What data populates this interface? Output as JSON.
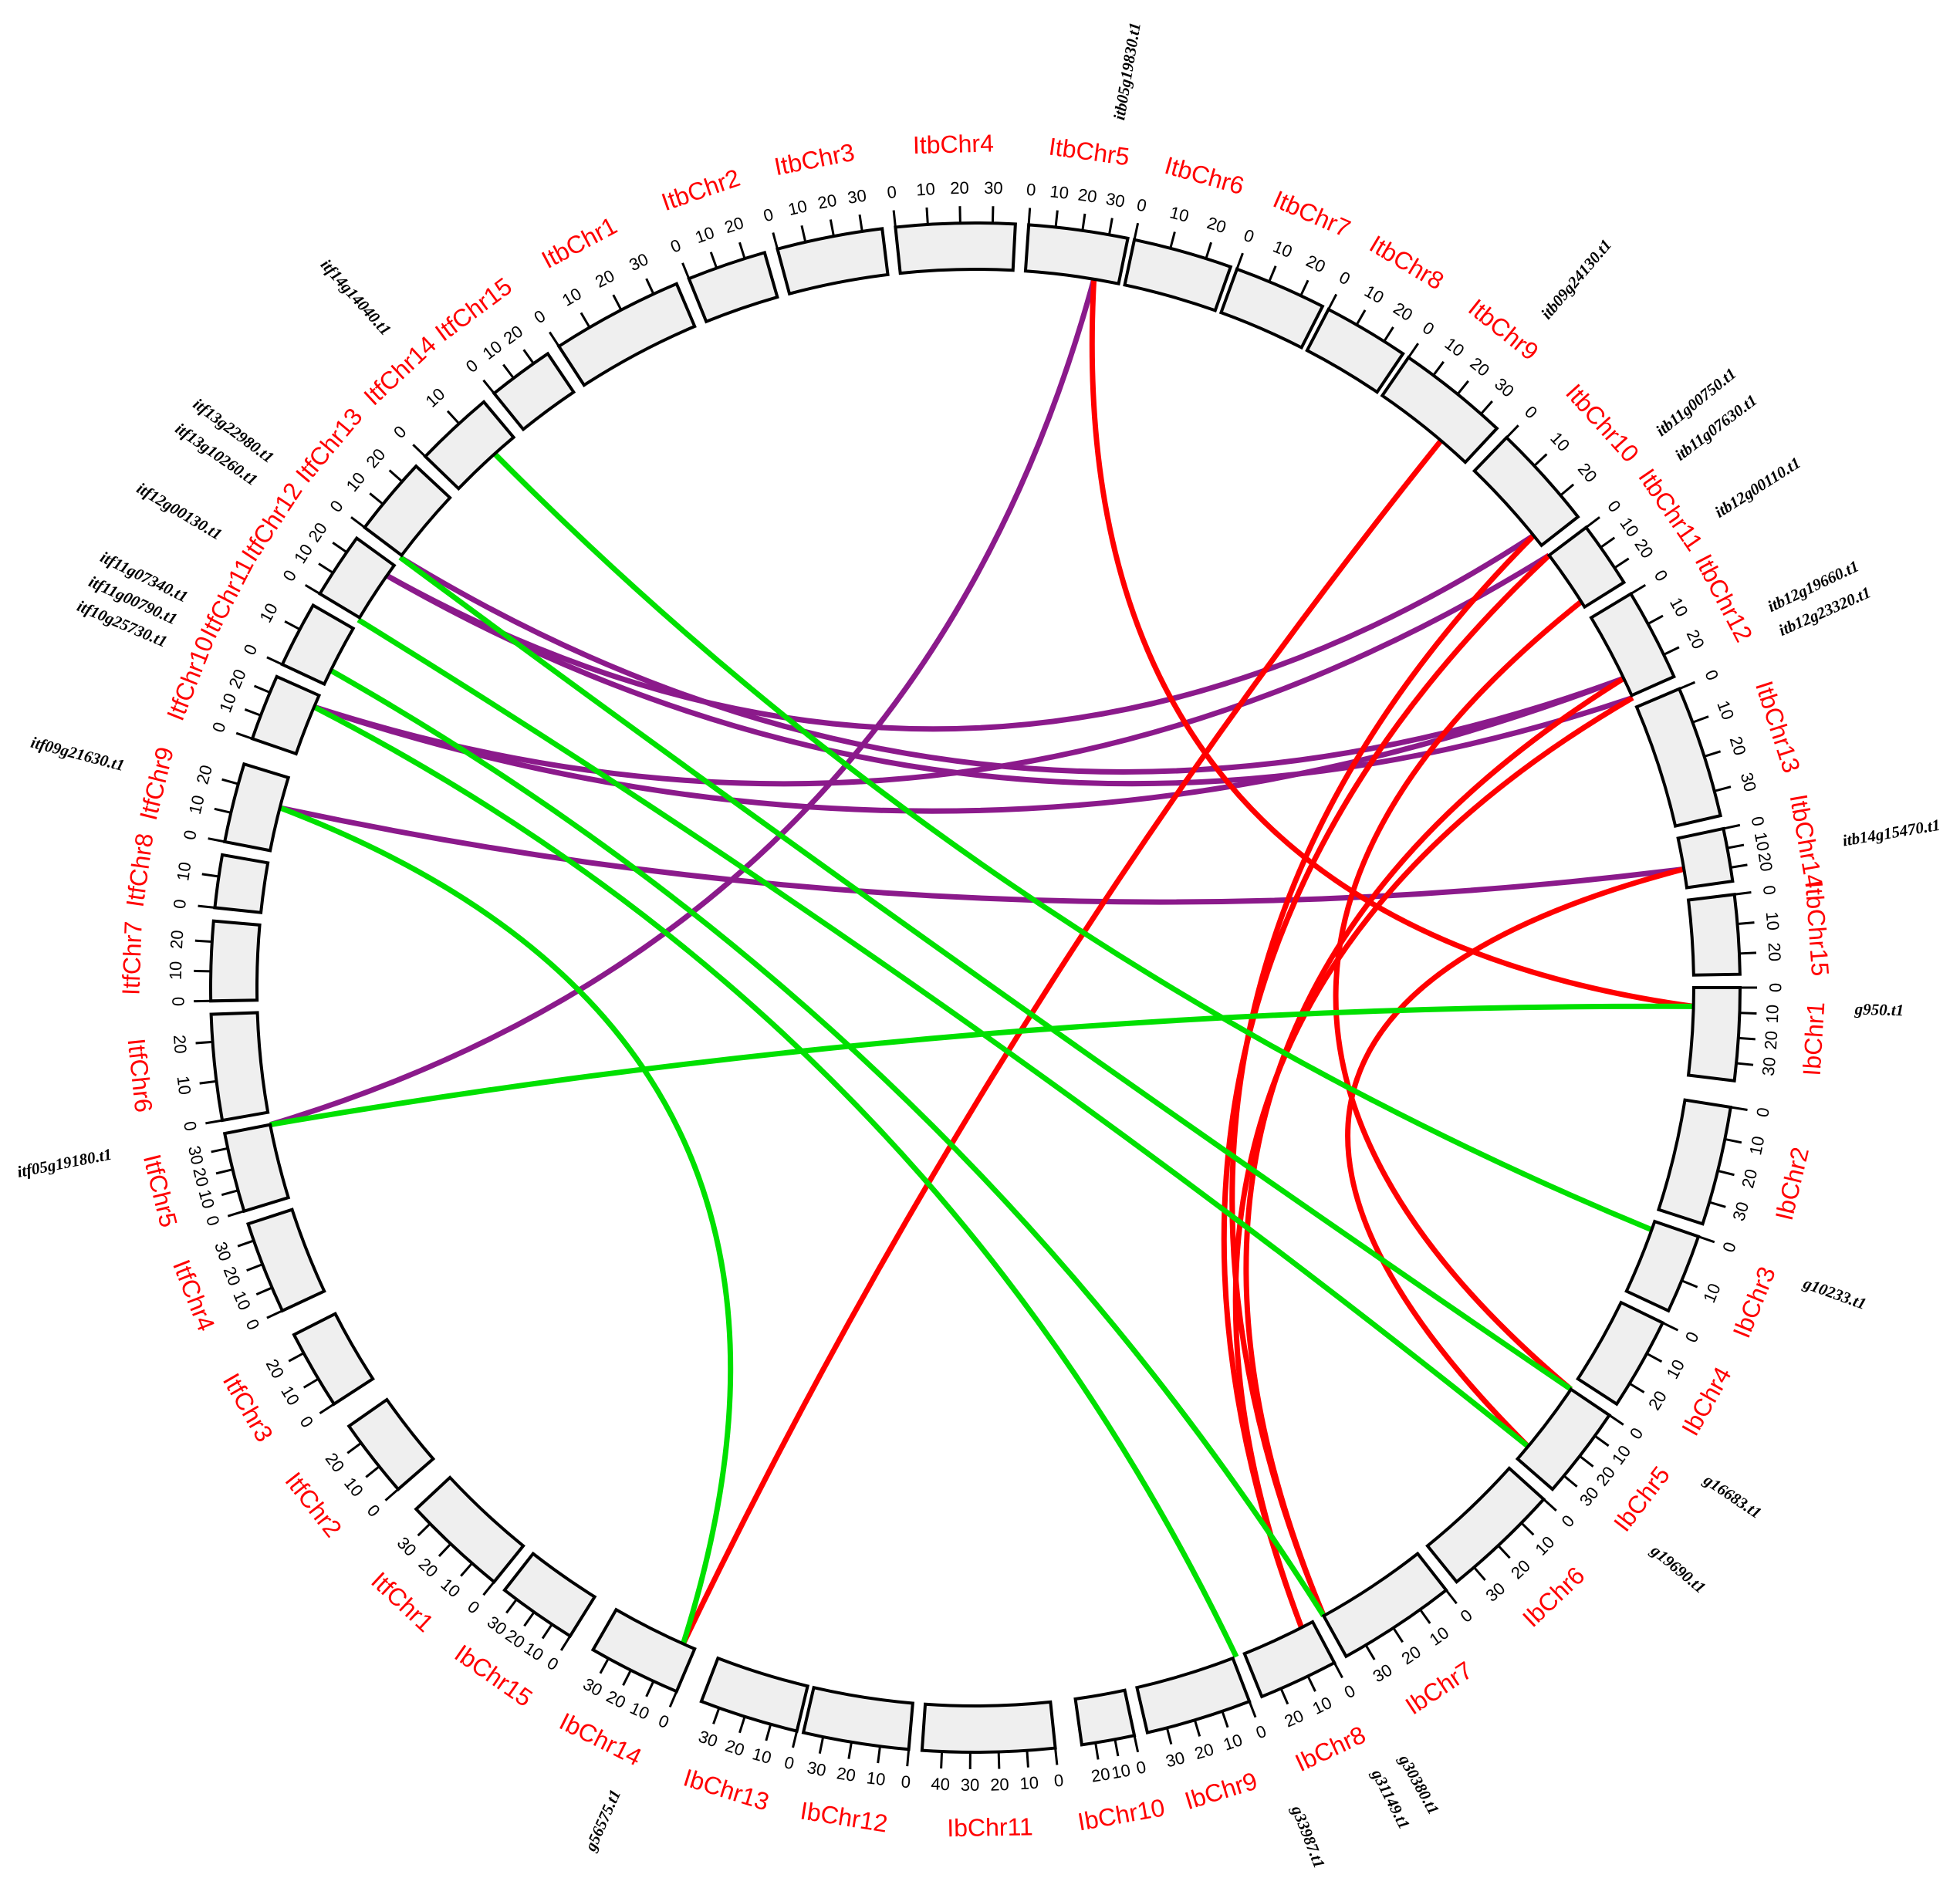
{
  "label_color": "#ff0000",
  "block_fill": "#efefef",
  "chromosomes": [
    {
      "label": "ItbChr1",
      "ticks": [
        0,
        10,
        20,
        30
      ]
    },
    {
      "label": "ItbChr2",
      "ticks": [
        0,
        10,
        20
      ]
    },
    {
      "label": "ItbChr3",
      "ticks": [
        0,
        10,
        20,
        30
      ]
    },
    {
      "label": "ItbChr4",
      "ticks": [
        0,
        10,
        20,
        30
      ]
    },
    {
      "label": "ItbChr5",
      "ticks": [
        0,
        10,
        20,
        30
      ]
    },
    {
      "label": "ItbChr6",
      "ticks": [
        0,
        10,
        20
      ]
    },
    {
      "label": "ItbChr7",
      "ticks": [
        0,
        10,
        20
      ]
    },
    {
      "label": "ItbChr8",
      "ticks": [
        0,
        10,
        20
      ]
    },
    {
      "label": "ItbChr9",
      "ticks": [
        0,
        10,
        20,
        30
      ]
    },
    {
      "label": "ItbChr10",
      "ticks": [
        0,
        10,
        20
      ]
    },
    {
      "label": "ItbChr11",
      "ticks": [
        0,
        10,
        20
      ]
    },
    {
      "label": "ItbChr12",
      "ticks": [
        0,
        10,
        20
      ]
    },
    {
      "label": "ItbChr13",
      "ticks": [
        0,
        10,
        20,
        30
      ]
    },
    {
      "label": "ItbChr14",
      "ticks": [
        0,
        10,
        20
      ]
    },
    {
      "label": "ItbChr15",
      "ticks": [
        0,
        10,
        20
      ]
    },
    {
      "label": "IbChr1",
      "ticks": [
        0,
        10,
        20,
        30
      ]
    },
    {
      "label": "IbChr2",
      "ticks": [
        0,
        10,
        20,
        30
      ]
    },
    {
      "label": "IbChr3",
      "ticks": [
        0,
        10
      ]
    },
    {
      "label": "IbChr4",
      "ticks": [
        0,
        10,
        20
      ]
    },
    {
      "label": "IbChr5",
      "ticks": [
        0,
        10,
        20,
        30
      ]
    },
    {
      "label": "IbChr6",
      "ticks": [
        0,
        10,
        20,
        30
      ]
    },
    {
      "label": "IbChr7",
      "ticks": [
        0,
        10,
        20,
        30
      ]
    },
    {
      "label": "IbChr8",
      "ticks": [
        0,
        10,
        20
      ]
    },
    {
      "label": "IbChr9",
      "ticks": [
        0,
        10,
        20,
        30
      ]
    },
    {
      "label": "IbChr10",
      "ticks": [
        0,
        10,
        20
      ]
    },
    {
      "label": "IbChr11",
      "ticks": [
        0,
        10,
        20,
        30,
        40
      ]
    },
    {
      "label": "IbChr12",
      "ticks": [
        0,
        10,
        20,
        30
      ]
    },
    {
      "label": "IbChr13",
      "ticks": [
        0,
        10,
        20,
        30
      ]
    },
    {
      "label": "IbChr14",
      "ticks": [
        0,
        10,
        20,
        30
      ]
    },
    {
      "label": "IbChr15",
      "ticks": [
        0,
        10,
        20,
        30
      ]
    },
    {
      "label": "ItfChr1",
      "ticks": [
        0,
        10,
        20,
        30
      ]
    },
    {
      "label": "ItfChr2",
      "ticks": [
        0,
        10,
        20
      ]
    },
    {
      "label": "ItfChr3",
      "ticks": [
        0,
        10,
        20
      ]
    },
    {
      "label": "ItfChr4",
      "ticks": [
        0,
        10,
        20,
        30
      ]
    },
    {
      "label": "ItfChr5",
      "ticks": [
        0,
        10,
        20,
        30
      ]
    },
    {
      "label": "ItfChr6",
      "ticks": [
        0,
        10,
        20
      ]
    },
    {
      "label": "ItfChr7",
      "ticks": [
        0,
        10,
        20
      ]
    },
    {
      "label": "ItfChr8",
      "ticks": [
        0,
        10
      ]
    },
    {
      "label": "ItfChr9",
      "ticks": [
        0,
        10,
        20
      ]
    },
    {
      "label": "ItfChr10",
      "ticks": [
        0,
        10,
        20
      ]
    },
    {
      "label": "ItfChr11",
      "ticks": [
        0,
        10
      ]
    },
    {
      "label": "ItfChr12",
      "ticks": [
        0,
        10,
        20
      ]
    },
    {
      "label": "ItfChr13",
      "ticks": [
        0,
        10,
        20
      ]
    },
    {
      "label": "ItfChr14",
      "ticks": [
        0,
        10
      ]
    },
    {
      "label": "ItfChr15",
      "ticks": [
        0,
        10,
        20
      ]
    }
  ],
  "genes": [
    "itb05g19830.t1",
    "itb09g24130.t1",
    "itb11g00750.t1",
    "itb11g07630.t1",
    "itb12g00110.t1",
    "itb12g19660.t1",
    "itb12g23320.t1",
    "itb14g15470.t1",
    "g950.t1",
    "g10233.t1",
    "g16683.t1",
    "g19690.t1",
    "g30380.t1",
    "g31149.t1",
    "g33987.t1",
    "g56575.t1",
    "itf05g19180.t1",
    "itf09g21630.t1",
    "itf10g25730.t1",
    "itf11g00790.t1",
    "itf11g07340.t1",
    "itf12g00130.t1",
    "itf13g10260.t1",
    "itf13g22980.t1",
    "itf14g14040.t1"
  ],
  "links": [
    {
      "from": "itf05g19180.t1",
      "to": "itb05g19830.t1",
      "color": "#8b1a8b"
    },
    {
      "from": "itf13g10260.t1",
      "to": "itb11g00750.t1",
      "color": "#8b1a8b"
    },
    {
      "from": "itf13g10260.t1",
      "to": "itb12g23320.t1",
      "color": "#8b1a8b"
    },
    {
      "from": "itf10g25730.t1",
      "to": "itb12g19660.t1",
      "color": "#8b1a8b"
    },
    {
      "from": "itf10g25730.t1",
      "to": "itb11g07630.t1",
      "color": "#8b1a8b"
    },
    {
      "from": "itf09g21630.t1",
      "to": "itb14g15470.t1",
      "color": "#8b1a8b"
    },
    {
      "from": "itf13g22980.t1",
      "to": "itb12g19660.t1",
      "color": "#8b1a8b"
    },
    {
      "from": "itb05g19830.t1",
      "to": "g950.t1",
      "color": "#ff0000"
    },
    {
      "from": "itb09g24130.t1",
      "to": "g56575.t1",
      "color": "#ff0000"
    },
    {
      "from": "itb11g00750.t1",
      "to": "g30380.t1",
      "color": "#ff0000"
    },
    {
      "from": "itb11g07630.t1",
      "to": "g31149.t1",
      "color": "#ff0000"
    },
    {
      "from": "itb12g00110.t1",
      "to": "g16683.t1",
      "color": "#ff0000"
    },
    {
      "from": "itb12g19660.t1",
      "to": "g30380.t1",
      "color": "#ff0000"
    },
    {
      "from": "itb12g23320.t1",
      "to": "g31149.t1",
      "color": "#ff0000"
    },
    {
      "from": "itb14g15470.t1",
      "to": "g19690.t1",
      "color": "#ff0000"
    },
    {
      "from": "itf14g14040.t1",
      "to": "g10233.t1",
      "color": "#00e000"
    },
    {
      "from": "itf13g22980.t1",
      "to": "g16683.t1",
      "color": "#00e000"
    },
    {
      "from": "itf12g00130.t1",
      "to": "g19690.t1",
      "color": "#00e000"
    },
    {
      "from": "itf11g07340.t1",
      "to": "g30380.t1",
      "color": "#00e000"
    },
    {
      "from": "itf10g25730.t1",
      "to": "g33987.t1",
      "color": "#00e000"
    },
    {
      "from": "itf09g21630.t1",
      "to": "g56575.t1",
      "color": "#00e000"
    },
    {
      "from": "itf05g19180.t1",
      "to": "g950.t1",
      "color": "#00e000"
    }
  ]
}
